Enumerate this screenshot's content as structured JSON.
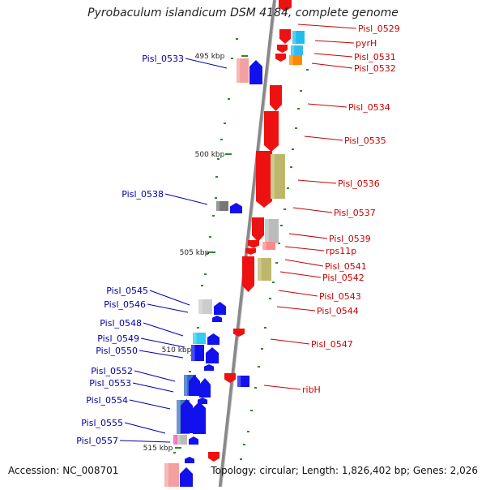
{
  "title": "Pyrobaculum islandicum DSM 4184, complete genome",
  "footer": {
    "accession": "Accession: NC_008701",
    "summary": "Topology: circular; Length: 1,826,402 bp; Genes: 2,026"
  },
  "colors": {
    "forward_label": "#0000aa",
    "reverse_label": "#cc0000",
    "backbone": "#888888",
    "tick": "#2a8a2a"
  },
  "axis": {
    "ticks": [
      {
        "label": "495 kbp"
      },
      {
        "label": "500 kbp"
      },
      {
        "label": "505 kbp"
      },
      {
        "label": "510 kbp"
      },
      {
        "label": "515 kbp"
      }
    ]
  },
  "gene_labels_left": [
    "Pisl_0533",
    "Pisl_0538",
    "Pisl_0545",
    "Pisl_0546",
    "Pisl_0548",
    "Pisl_0549",
    "Pisl_0550",
    "Pisl_0552",
    "Pisl_0553",
    "Pisl_0554",
    "Pisl_0555",
    "Pisl_0557"
  ],
  "gene_labels_right": [
    "Pisl_0529",
    "pyrH",
    "Pisl_0531",
    "Pisl_0532",
    "Pisl_0534",
    "Pisl_0535",
    "Pisl_0536",
    "Pisl_0537",
    "Pisl_0539",
    "rps11p",
    "Pisl_0541",
    "Pisl_0542",
    "Pisl_0543",
    "Pisl_0544",
    "Pisl_0547",
    "ribH"
  ]
}
